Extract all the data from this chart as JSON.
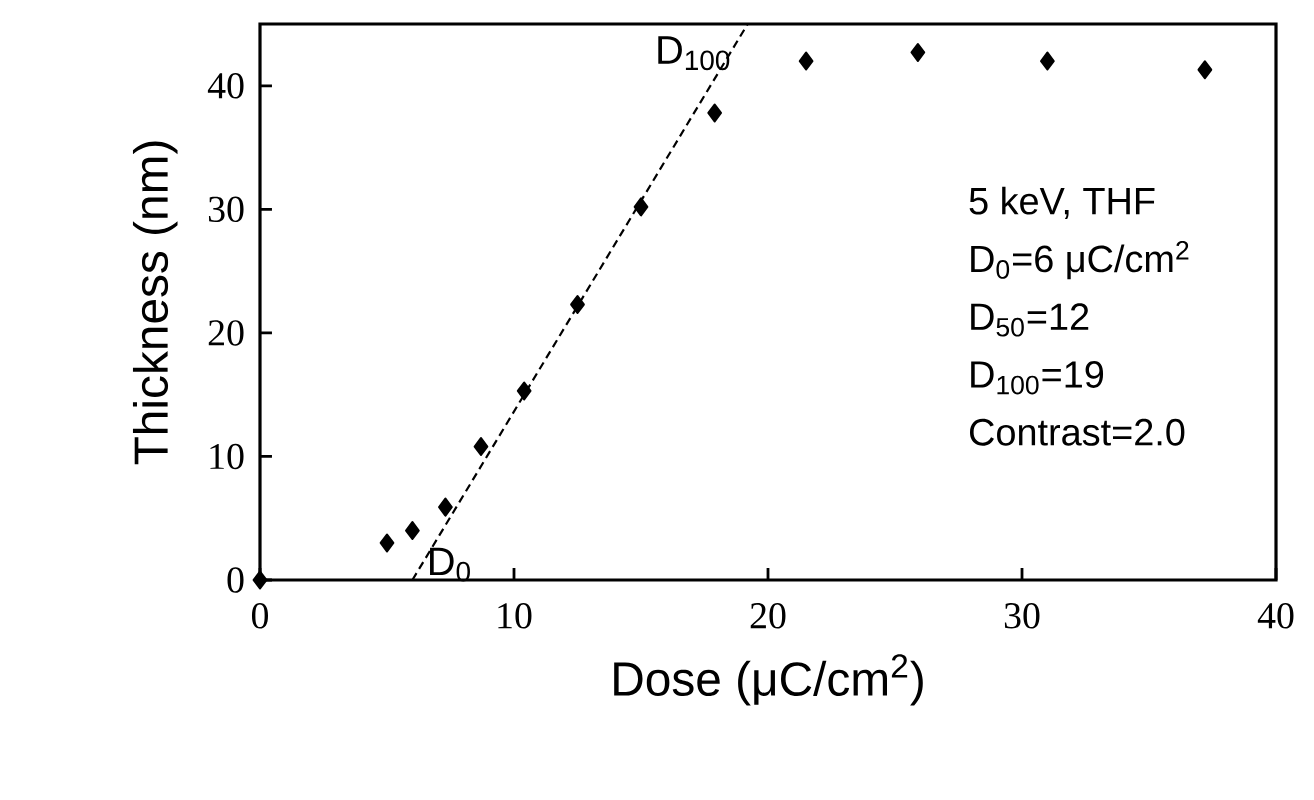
{
  "chart_data": {
    "type": "scatter",
    "xlabel": "Dose (μC/cm$^{2}$)",
    "ylabel": "Thickness (nm)",
    "xlim": [
      0,
      40
    ],
    "ylim": [
      0,
      45
    ],
    "xticks": [
      0,
      10,
      20,
      30,
      40
    ],
    "yticks": [
      0,
      10,
      20,
      30,
      40
    ],
    "grid": false,
    "marker": "diamond",
    "series": [
      {
        "color": "#000000",
        "x": [
          0,
          5.0,
          6.0,
          7.3,
          8.7,
          10.4,
          12.5,
          15.0,
          17.9,
          21.5,
          25.9,
          31.0,
          37.2
        ],
        "values": [
          0,
          3.0,
          4.0,
          5.9,
          10.8,
          15.3,
          22.3,
          30.2,
          37.8,
          42.0,
          42.7,
          42.0,
          41.3
        ]
      },
      {
        "type": "line",
        "color": "#000000",
        "line_style": "dashed",
        "marker": "none",
        "x": [
          6.0,
          19.2
        ],
        "values": [
          0,
          45
        ]
      }
    ],
    "annotations": [
      {
        "text": "D$_{100}$",
        "x": 19.2,
        "y": 45
      },
      {
        "text": "D$_{0}$",
        "x": 6.0,
        "y": 0
      },
      "5 keV, THF",
      "D$_{0}$=6 μC/cm$^{2}$",
      "D$_{50}$=12",
      "D$_{100}$=19",
      "Contrast=2.0"
    ]
  }
}
